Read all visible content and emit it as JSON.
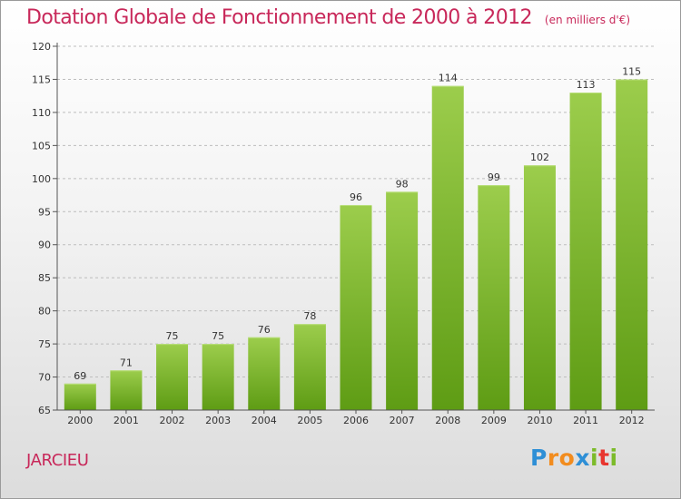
{
  "title": "Dotation Globale de Fonctionnement de 2000 à 2012",
  "subtitle": "(en milliers d'€)",
  "place": "JARCIEU",
  "logo_letters": [
    "P",
    "r",
    "o",
    "x",
    "i",
    "t",
    "i"
  ],
  "colors": {
    "title": "#c8285a",
    "bar_top": "#9ccd4c",
    "bar_bottom": "#5e9c14",
    "grid": "#bdbdbd"
  },
  "chart_data": {
    "type": "bar",
    "title": "Dotation Globale de Fonctionnement de 2000 à 2012",
    "subtitle": "(en milliers d'€)",
    "categories": [
      "2000",
      "2001",
      "2002",
      "2003",
      "2004",
      "2005",
      "2006",
      "2007",
      "2008",
      "2009",
      "2010",
      "2011",
      "2012"
    ],
    "values": [
      69,
      71,
      75,
      75,
      76,
      78,
      96,
      98,
      114,
      99,
      102,
      113,
      115
    ],
    "data_labels": [
      "69",
      "71",
      "75",
      "75",
      "76",
      "78",
      "96",
      "98",
      "114",
      "99",
      "102",
      "113",
      "115"
    ],
    "ylim": [
      65,
      120
    ],
    "yticks": [
      "65",
      "70",
      "75",
      "80",
      "85",
      "90",
      "95",
      "100",
      "105",
      "110",
      "115",
      "120"
    ],
    "grid": true,
    "grid_style": "dashed horizontal",
    "legend": false
  }
}
